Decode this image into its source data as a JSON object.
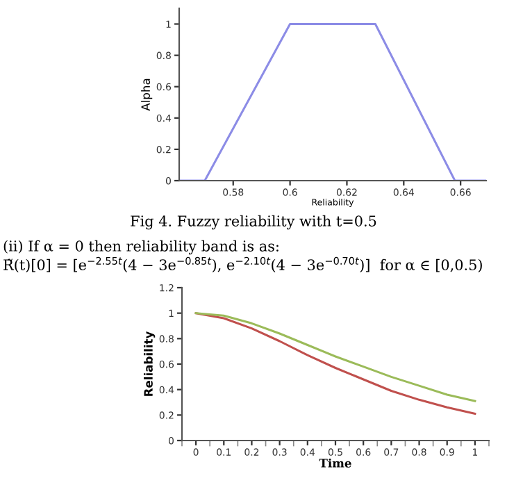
{
  "chart_data": [
    {
      "type": "line",
      "xlabel": "Reliability",
      "ylabel": "Alpha",
      "x": [
        0.561,
        0.57,
        0.6,
        0.63,
        0.658,
        0.669
      ],
      "series": [
        {
          "color": "#8c8ce6",
          "values": [
            0,
            0,
            1,
            1,
            0,
            0
          ]
        }
      ],
      "xlim": [
        0.561,
        0.669
      ],
      "xticks": [
        0.58,
        0.6,
        0.62,
        0.64,
        0.66
      ],
      "ylim": [
        0,
        1.1
      ],
      "yticks": [
        0,
        0.2,
        0.4,
        0.6,
        0.8,
        1
      ],
      "grid": false,
      "legend": false,
      "marker": "none",
      "line_style": "solid",
      "annotations": [
        "Fig 4. Fuzzy reliability with t=0.5"
      ]
    },
    {
      "type": "line",
      "xlabel": "Time",
      "ylabel": "Reliability",
      "categories": [
        "0",
        "0.1",
        "0.2",
        "0.3",
        "0.4",
        "0.5",
        "0.6",
        "0.7",
        "0.8",
        "0.9",
        "1"
      ],
      "series": [
        {
          "color": "#c0504d",
          "values": [
            1,
            0.96,
            0.88,
            0.78,
            0.67,
            0.57,
            0.48,
            0.39,
            0.32,
            0.26,
            0.21
          ]
        },
        {
          "color": "#9bbb59",
          "values": [
            1,
            0.98,
            0.92,
            0.84,
            0.75,
            0.66,
            0.58,
            0.5,
            0.43,
            0.36,
            0.31
          ]
        }
      ],
      "ylim": [
        0,
        1.2
      ],
      "yticks": [
        0,
        0.2,
        0.4,
        0.6,
        0.8,
        1,
        1.2
      ],
      "grid": false,
      "legend": false,
      "marker": "none",
      "line_style": "solid",
      "annotations": [
        "(ii) If α = 0 then reliability band is as:",
        "R̃(t)[0] = [e$^{−2.55t}$(4 − 3e$^{−0.85t}$), e$^{−2.10t}$(4 − 3e$^{−0.70t}$)]  for α ∈ [0,0.5)"
      ]
    }
  ]
}
